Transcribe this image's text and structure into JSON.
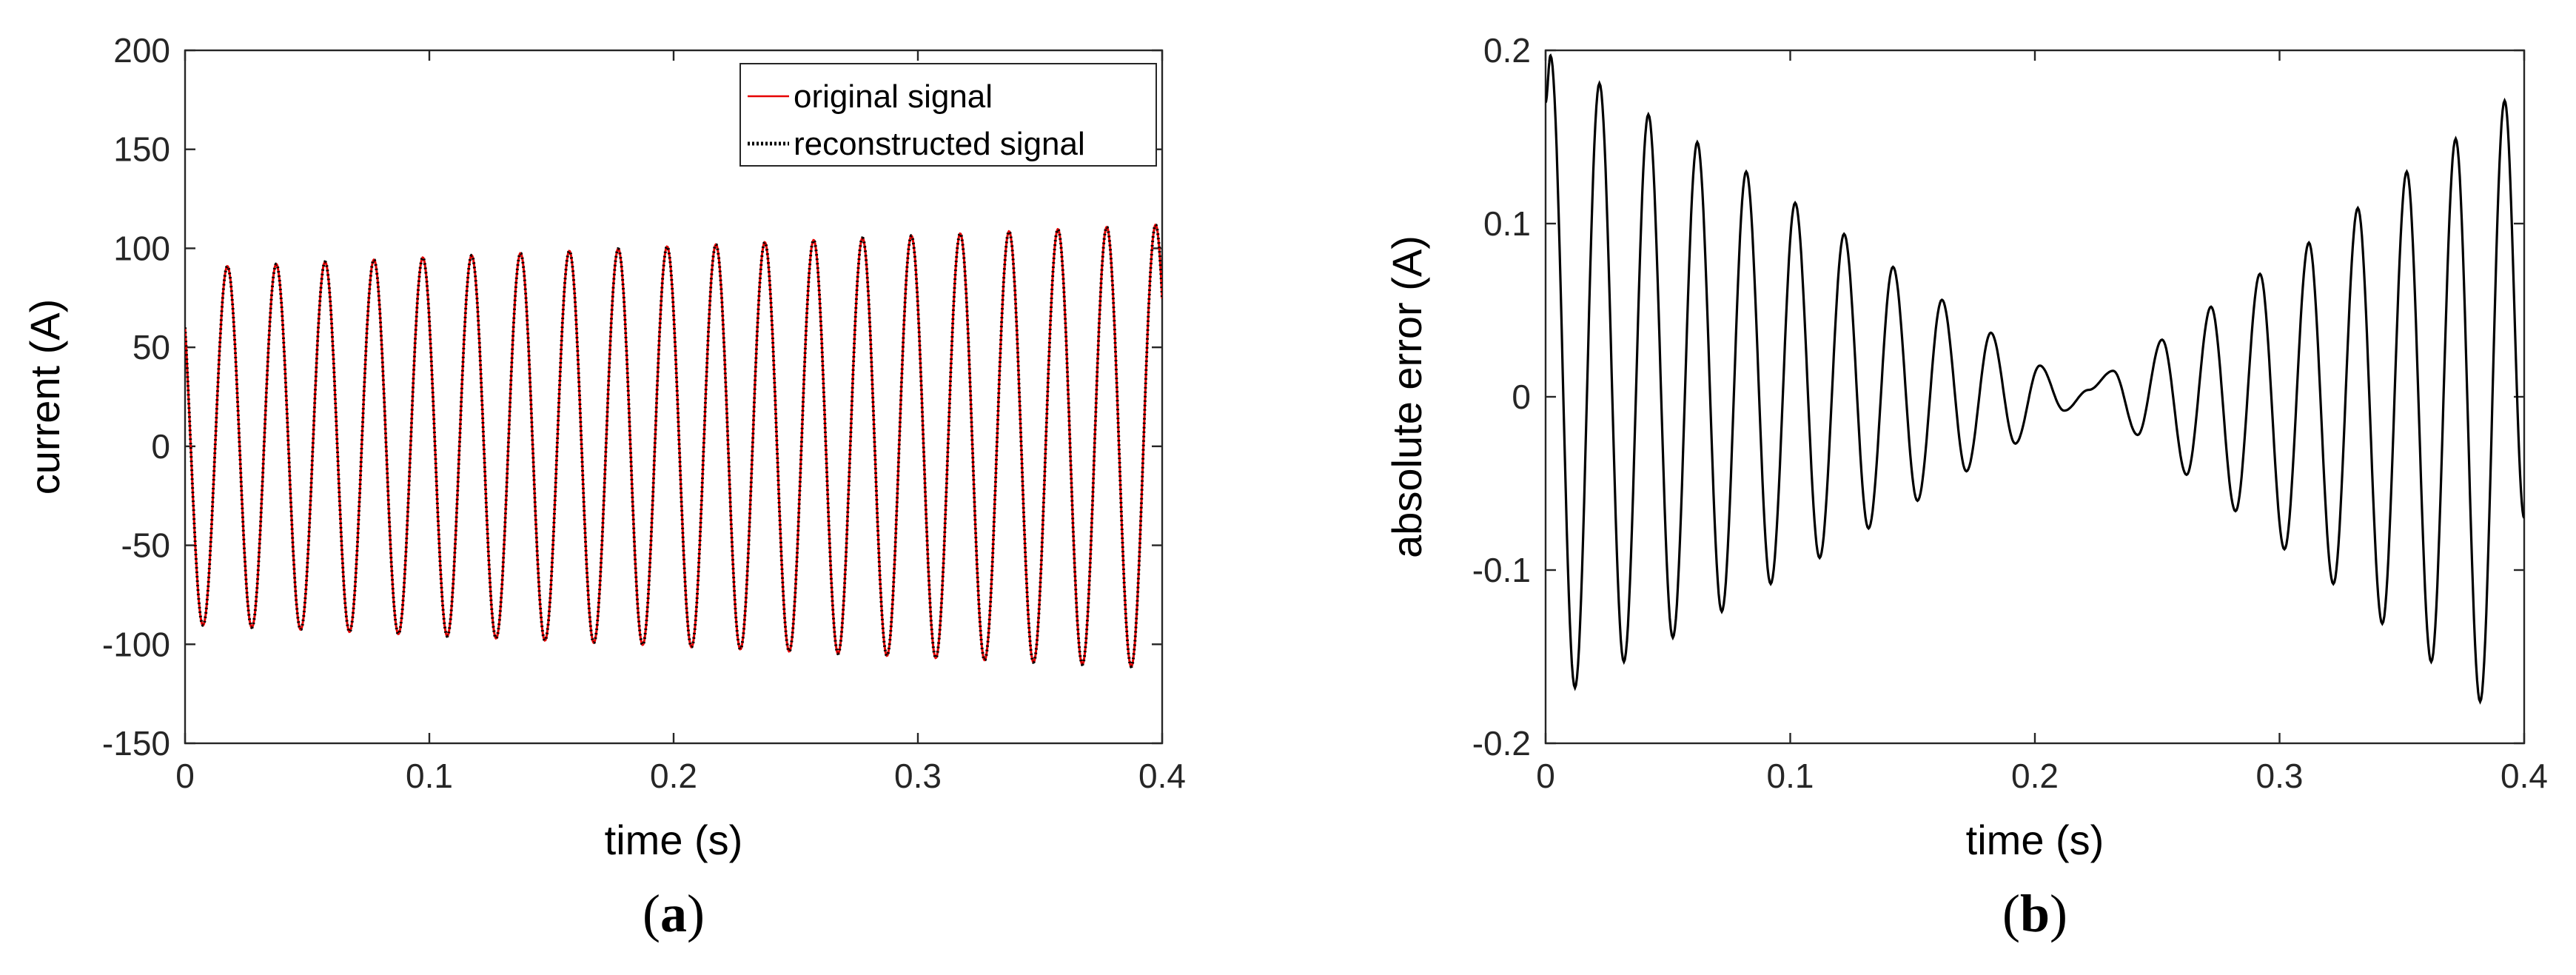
{
  "chart_data": [
    {
      "type": "line",
      "panel_label_open": "(",
      "panel_label": "a",
      "panel_label_close": ")",
      "xlabel": "time (s)",
      "ylabel": "current (A)",
      "xlim": [
        0,
        0.4
      ],
      "ylim": [
        -150,
        200
      ],
      "xticks": [
        "0",
        "0.1",
        "0.2",
        "0.3",
        "0.4"
      ],
      "xtick_values": [
        0,
        0.1,
        0.2,
        0.3,
        0.4
      ],
      "yticks": [
        "200",
        "150",
        "100",
        "50",
        "0",
        "-50",
        "-100",
        "-150"
      ],
      "ytick_values": [
        200,
        150,
        100,
        50,
        0,
        -50,
        -100,
        -150
      ],
      "grid": false,
      "legend_position": "top-right",
      "signal_model": {
        "frequency_hz": 50,
        "start_value": 60,
        "amplitude_start": 90,
        "amplitude_end": 112
      },
      "series": [
        {
          "name": "original signal",
          "color": "#e60000",
          "style": "solid",
          "x": [
            0,
            0.01,
            0.02,
            0.03,
            0.04,
            0.05,
            0.06,
            0.07,
            0.08,
            0.09,
            0.1,
            0.11,
            0.12,
            0.13,
            0.14,
            0.15,
            0.16,
            0.17,
            0.18,
            0.19,
            0.2,
            0.21,
            0.22,
            0.23,
            0.24,
            0.25,
            0.26,
            0.27,
            0.28,
            0.29,
            0.3,
            0.31,
            0.32,
            0.33,
            0.34,
            0.35,
            0.36,
            0.37,
            0.38,
            0.39,
            0.4
          ],
          "y": [
            60,
            -90,
            98,
            -92,
            99,
            -93,
            100,
            -94,
            101,
            -95,
            102,
            -96,
            103,
            -97,
            104,
            -98,
            105,
            -99,
            106,
            -100,
            107,
            -101,
            108,
            -102,
            109,
            -103,
            110,
            -104,
            111,
            -105,
            112,
            -106,
            113,
            -107,
            114,
            -108,
            115,
            -109,
            116,
            -109,
            116
          ]
        },
        {
          "name": "reconstructed signal",
          "color": "#000000",
          "style": "dotted",
          "x": [
            0,
            0.01,
            0.02,
            0.03,
            0.04,
            0.05,
            0.06,
            0.07,
            0.08,
            0.09,
            0.1,
            0.11,
            0.12,
            0.13,
            0.14,
            0.15,
            0.16,
            0.17,
            0.18,
            0.19,
            0.2,
            0.21,
            0.22,
            0.23,
            0.24,
            0.25,
            0.26,
            0.27,
            0.28,
            0.29,
            0.3,
            0.31,
            0.32,
            0.33,
            0.34,
            0.35,
            0.36,
            0.37,
            0.38,
            0.39,
            0.4
          ],
          "y": [
            60,
            -90,
            98,
            -92,
            99,
            -93,
            100,
            -94,
            101,
            -95,
            102,
            -96,
            103,
            -97,
            104,
            -98,
            105,
            -99,
            106,
            -100,
            107,
            -101,
            108,
            -102,
            109,
            -103,
            110,
            -104,
            111,
            -105,
            112,
            -106,
            113,
            -107,
            114,
            -108,
            115,
            -109,
            116,
            -109,
            116
          ]
        }
      ]
    },
    {
      "type": "line",
      "panel_label_open": "(",
      "panel_label": "b",
      "panel_label_close": ")",
      "xlabel": "time (s)",
      "ylabel": "absolute error (A)",
      "xlim": [
        0,
        0.4
      ],
      "ylim": [
        -0.2,
        0.2
      ],
      "xticks": [
        "0",
        "0.1",
        "0.2",
        "0.3",
        "0.4"
      ],
      "xtick_values": [
        0,
        0.1,
        0.2,
        0.3,
        0.4
      ],
      "yticks": [
        "0.2",
        "0.1",
        "0",
        "-0.1",
        "-0.2"
      ],
      "ytick_values": [
        0.2,
        0.1,
        0,
        -0.1,
        -0.2
      ],
      "grid": false,
      "series": [
        {
          "color": "#000000",
          "style": "solid",
          "x": [
            0,
            0.002,
            0.012,
            0.022,
            0.032,
            0.042,
            0.052,
            0.062,
            0.072,
            0.082,
            0.092,
            0.102,
            0.112,
            0.122,
            0.132,
            0.142,
            0.152,
            0.162,
            0.172,
            0.182,
            0.192,
            0.202,
            0.212,
            0.222,
            0.232,
            0.242,
            0.252,
            0.262,
            0.272,
            0.282,
            0.292,
            0.302,
            0.312,
            0.322,
            0.332,
            0.342,
            0.352,
            0.362,
            0.372,
            0.382,
            0.392,
            0.4
          ],
          "y": [
            0.17,
            0.197,
            -0.168,
            0.181,
            -0.153,
            0.163,
            -0.139,
            0.147,
            -0.124,
            0.13,
            -0.108,
            0.112,
            -0.093,
            0.094,
            -0.076,
            0.075,
            -0.06,
            0.056,
            -0.043,
            0.037,
            -0.027,
            0.018,
            -0.008,
            0.004,
            0.015,
            -0.022,
            0.033,
            -0.045,
            0.052,
            -0.066,
            0.071,
            -0.088,
            0.089,
            -0.108,
            0.109,
            -0.131,
            0.13,
            -0.153,
            0.149,
            -0.176,
            0.171,
            -0.07
          ]
        }
      ]
    }
  ]
}
